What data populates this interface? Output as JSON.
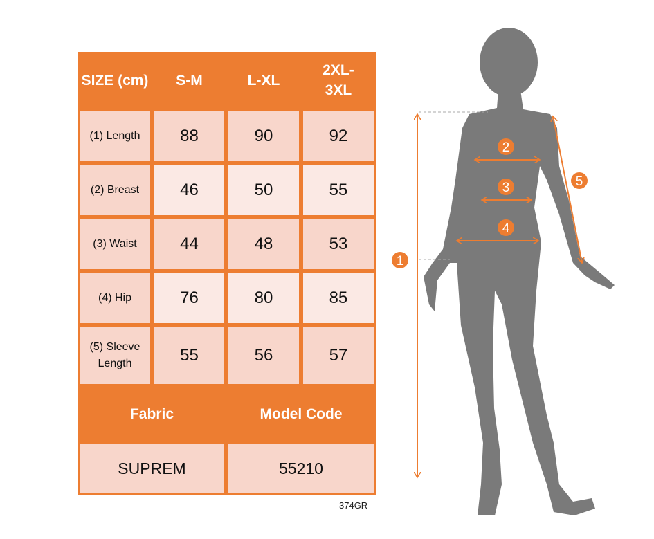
{
  "colors": {
    "accent": "#ed7d31",
    "row_dark": "#f8d6cb",
    "row_light": "#fbe9e4",
    "silhouette": "#7a7a7a"
  },
  "table": {
    "headers": [
      "SIZE (cm)",
      "S-M",
      "L-XL",
      "2XL- 3XL"
    ],
    "rows": [
      {
        "label": "(1) Length",
        "values": [
          "88",
          "90",
          "92"
        ]
      },
      {
        "label": "(2) Breast",
        "values": [
          "46",
          "50",
          "55"
        ]
      },
      {
        "label": "(3) Waist",
        "values": [
          "44",
          "48",
          "53"
        ]
      },
      {
        "label": "(4) Hip",
        "values": [
          "76",
          "80",
          "85"
        ]
      },
      {
        "label": "(5) Sleeve Length",
        "values": [
          "55",
          "56",
          "57"
        ]
      }
    ],
    "footer_headers": [
      "Fabric",
      "Model Code"
    ],
    "footer_values": [
      "SUPREM",
      "55210"
    ]
  },
  "product_code": "374GR",
  "figure": {
    "markers": [
      "1",
      "2",
      "3",
      "4",
      "5"
    ]
  }
}
